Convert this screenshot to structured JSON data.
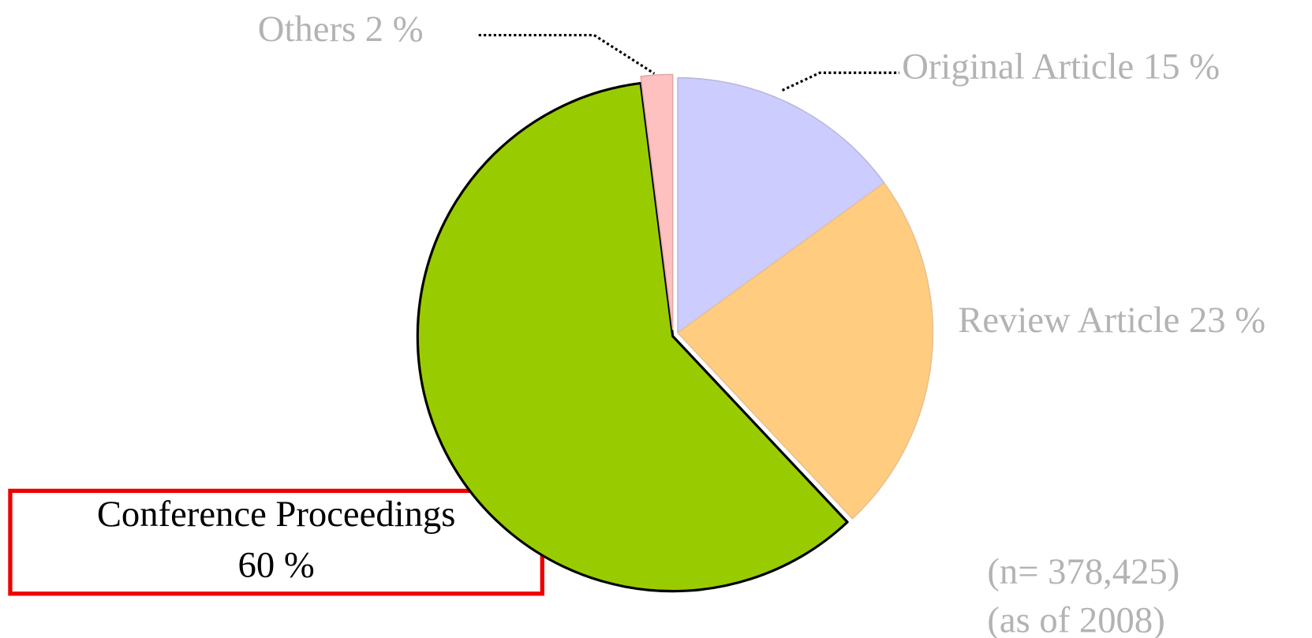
{
  "chart_data": {
    "type": "pie",
    "categories": [
      "Original Article",
      "Review Article",
      "Conference Proceedings",
      "Others"
    ],
    "values": [
      15,
      23,
      60,
      2
    ],
    "value_labels": [
      "15 %",
      "23 %",
      "60 %",
      "2 %"
    ],
    "colors": [
      "#ccccff",
      "#ffcc80",
      "#99cc00",
      "#ffc0c0"
    ],
    "annotations": [
      "(n= 378,425)",
      "(as of 2008)"
    ]
  }
}
